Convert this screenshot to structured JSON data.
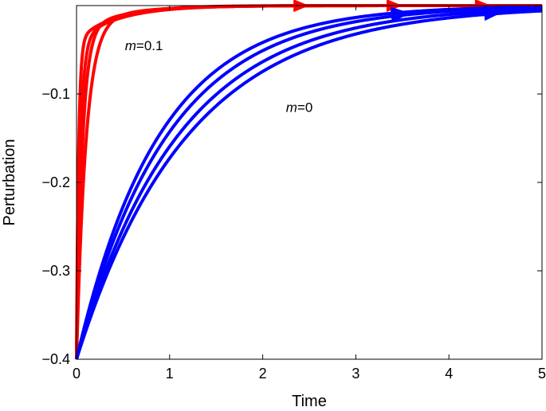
{
  "chart_data": {
    "type": "line",
    "title": "",
    "xlabel": "Time",
    "ylabel": "Perturbation",
    "xlim": [
      0,
      5
    ],
    "ylim": [
      -0.4,
      0
    ],
    "x_ticks": [
      0,
      1,
      2,
      3,
      4,
      5
    ],
    "y_ticks": [
      -0.4,
      -0.3,
      -0.2,
      -0.1
    ],
    "x_tick_labels": [
      "0",
      "1",
      "2",
      "3",
      "4",
      "5"
    ],
    "y_tick_labels": [
      "−0.4",
      "−0.3",
      "−0.2",
      "−0.1"
    ],
    "grid": false,
    "legend": "none",
    "colors": {
      "m01": "#ff0000",
      "m0": "#0000ff"
    },
    "annotations": [
      {
        "var": "m",
        "rest": "=0.1",
        "x": 0.52,
        "y": -0.045
      },
      {
        "var": "m",
        "rest": "=0",
        "x": 2.25,
        "y": -0.115
      }
    ],
    "series": [
      {
        "group": "m01",
        "color": "#ff0000",
        "y0": -0.4,
        "k_fast": 45,
        "k_slow": 2.5,
        "w": 0.9,
        "arrow_x": 2.45
      },
      {
        "group": "m01",
        "color": "#ff0000",
        "y0": -0.4,
        "k_fast": 25,
        "k_slow": 2.2,
        "w": 0.9,
        "arrow_x": 3.45
      },
      {
        "group": "m01",
        "color": "#ff0000",
        "y0": -0.4,
        "k_fast": 16,
        "k_slow": 2.0,
        "w": 0.93,
        "arrow_x": 4.4
      },
      {
        "group": "m01",
        "color": "#ff0000",
        "y0": -0.4,
        "k_fast": 10,
        "k_slow": 1.8,
        "w": 0.95,
        "arrow_x": 4.4
      },
      {
        "group": "m0",
        "color": "#0000ff",
        "y0": -0.4,
        "k": 1.13,
        "arrow_x": 3.5
      },
      {
        "group": "m0",
        "color": "#0000ff",
        "y0": -0.4,
        "k": 1.03,
        "arrow_x": 3.5
      },
      {
        "group": "m0",
        "color": "#0000ff",
        "y0": -0.4,
        "k": 0.92,
        "arrow_x": 4.5
      },
      {
        "group": "m0",
        "color": "#0000ff",
        "y0": -0.4,
        "k": 0.84,
        "arrow_x": 4.5
      }
    ]
  }
}
